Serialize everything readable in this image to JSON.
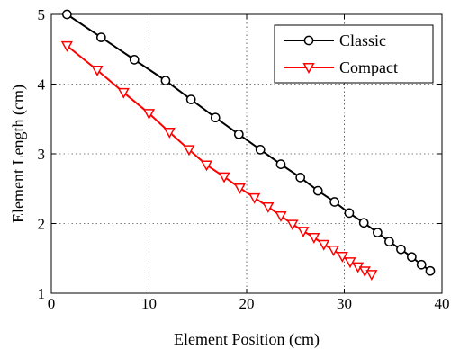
{
  "chart_data": {
    "type": "line",
    "xlabel": "Element Position (cm)",
    "ylabel": "Element Length (cm)",
    "xlim": [
      0,
      40
    ],
    "ylim": [
      1,
      5
    ],
    "xticks": [
      "0",
      "10",
      "20",
      "30",
      "40"
    ],
    "yticks": [
      "1",
      "2",
      "3",
      "4",
      "5"
    ],
    "grid": true,
    "legend_position": "top-right",
    "series": [
      {
        "name": "Classic",
        "color": "#000000",
        "marker": "circle",
        "x": [
          1.6,
          5.1,
          8.5,
          11.7,
          14.3,
          16.8,
          19.2,
          21.4,
          23.5,
          25.5,
          27.3,
          29.0,
          30.5,
          32.0,
          33.4,
          34.6,
          35.8,
          36.9,
          37.9,
          38.8
        ],
        "y": [
          5.0,
          4.67,
          4.35,
          4.05,
          3.78,
          3.52,
          3.28,
          3.06,
          2.85,
          2.66,
          2.47,
          2.31,
          2.15,
          2.01,
          1.87,
          1.74,
          1.63,
          1.52,
          1.41,
          1.32
        ]
      },
      {
        "name": "Compact",
        "color": "#ff0000",
        "marker": "triangle-down",
        "x": [
          1.6,
          4.7,
          7.4,
          10.0,
          12.1,
          14.1,
          15.9,
          17.7,
          19.3,
          20.8,
          22.2,
          23.5,
          24.7,
          25.8,
          26.9,
          27.9,
          28.9,
          29.8,
          30.6,
          31.4,
          32.1,
          32.8
        ],
        "y": [
          4.55,
          4.2,
          3.88,
          3.58,
          3.31,
          3.06,
          2.84,
          2.67,
          2.51,
          2.37,
          2.24,
          2.11,
          1.99,
          1.89,
          1.8,
          1.7,
          1.62,
          1.53,
          1.45,
          1.38,
          1.32,
          1.27
        ]
      }
    ]
  }
}
